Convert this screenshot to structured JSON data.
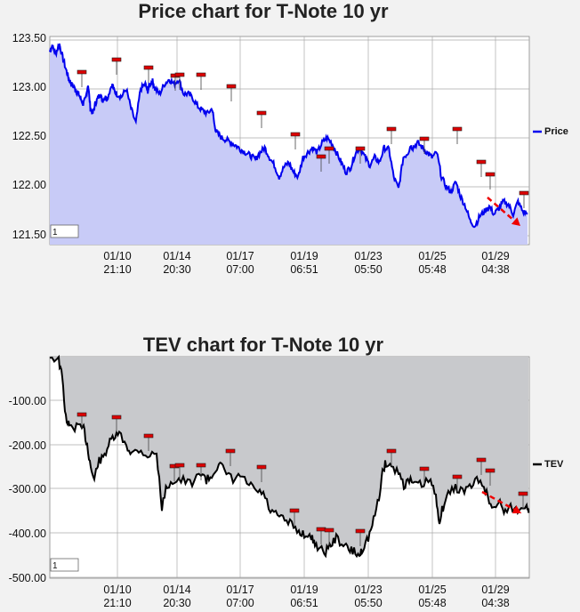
{
  "chart_data": [
    {
      "type": "line",
      "title": "Price chart for T-Note 10 yr",
      "legend": "Price",
      "legend_position": "right",
      "grid": true,
      "line_color": "#0000ee",
      "fill_color": "#c8cbf7",
      "marker_color": "#dd0000",
      "input_value": "1",
      "ylim": [
        121.4,
        123.6
      ],
      "yticks": [
        "123.50",
        "123.00",
        "122.50",
        "122.00",
        "121.50"
      ],
      "xticks": [
        {
          "date": "01/10",
          "time": "21:10"
        },
        {
          "date": "01/14",
          "time": "20:30"
        },
        {
          "date": "01/17",
          "time": "07:00"
        },
        {
          "date": "01/19",
          "time": "06:51"
        },
        {
          "date": "01/23",
          "time": "05:50"
        },
        {
          "date": "01/25",
          "time": "05:48"
        },
        {
          "date": "01/29",
          "time": "04:38"
        }
      ],
      "x": [
        0,
        0.005,
        0.012,
        0.02,
        0.028,
        0.035,
        0.04,
        0.045,
        0.05,
        0.055,
        0.06,
        0.065,
        0.07,
        0.075,
        0.08,
        0.085,
        0.09,
        0.095,
        0.1,
        0.105,
        0.11,
        0.115,
        0.12,
        0.13,
        0.135,
        0.14,
        0.15,
        0.16,
        0.17,
        0.18,
        0.19,
        0.2,
        0.205,
        0.21,
        0.215,
        0.22,
        0.23,
        0.24,
        0.25,
        0.26,
        0.27,
        0.28,
        0.29,
        0.3,
        0.31,
        0.32,
        0.33,
        0.34,
        0.345,
        0.35,
        0.36,
        0.37,
        0.38,
        0.39,
        0.4,
        0.41,
        0.42,
        0.43,
        0.44,
        0.45,
        0.46,
        0.47,
        0.48,
        0.49,
        0.5,
        0.51,
        0.52,
        0.53,
        0.54,
        0.55,
        0.56,
        0.57,
        0.58,
        0.59,
        0.6,
        0.61,
        0.62,
        0.63,
        0.64,
        0.65,
        0.66,
        0.67,
        0.68,
        0.69,
        0.7,
        0.71,
        0.72,
        0.73,
        0.74,
        0.75,
        0.755,
        0.76,
        0.77,
        0.78,
        0.79,
        0.8,
        0.81,
        0.82,
        0.83,
        0.84,
        0.85,
        0.86,
        0.87,
        0.88,
        0.89,
        0.9,
        0.91,
        0.92,
        0.93,
        0.94,
        0.95,
        0.96,
        0.97,
        0.98,
        0.99,
        1.0
      ],
      "y": [
        123.38,
        123.44,
        123.36,
        123.46,
        123.3,
        123.18,
        123.1,
        123.05,
        123.02,
        122.98,
        122.95,
        122.9,
        122.85,
        122.9,
        123.05,
        122.8,
        122.75,
        122.85,
        122.9,
        122.95,
        122.88,
        122.92,
        122.9,
        123.05,
        122.98,
        122.95,
        122.92,
        123.0,
        122.8,
        122.65,
        123.0,
        123.05,
        122.98,
        123.05,
        123.08,
        123.0,
        122.95,
        123.05,
        123.1,
        123.05,
        123.1,
        122.95,
        122.95,
        122.9,
        122.82,
        122.78,
        122.75,
        122.8,
        122.62,
        122.55,
        122.5,
        122.48,
        122.45,
        122.42,
        122.38,
        122.35,
        122.32,
        122.28,
        122.35,
        122.4,
        122.3,
        122.22,
        122.1,
        122.2,
        122.25,
        122.15,
        122.1,
        122.3,
        122.35,
        122.4,
        122.35,
        122.45,
        122.5,
        122.45,
        122.35,
        122.25,
        122.15,
        122.2,
        122.35,
        122.4,
        122.3,
        122.22,
        122.3,
        122.25,
        122.4,
        122.38,
        122.1,
        121.98,
        122.3,
        122.35,
        122.42,
        122.4,
        122.45,
        122.4,
        122.35,
        122.3,
        122.35,
        122.1,
        122.0,
        121.95,
        122.05,
        121.9,
        121.8,
        121.65,
        121.6,
        121.7,
        121.75,
        121.8,
        121.72,
        121.78,
        121.85,
        121.82,
        121.72,
        121.85,
        121.75,
        121.72
      ],
      "markers": [
        {
          "x": 0.12,
          "y": 123.15
        },
        {
          "x": 0.215,
          "y": 123.28
        },
        {
          "x": 0.3,
          "y": 123.2
        },
        {
          "x": 0.355,
          "y": 123.1
        },
        {
          "x": 0.39,
          "y": 123.12
        },
        {
          "x": 0.45,
          "y": 123.12
        },
        {
          "x": 0.53,
          "y": 122.98
        },
        {
          "x": 0.62,
          "y": 122.75
        },
        {
          "x": 0.72,
          "y": 122.52
        },
        {
          "x": 0.795,
          "y": 122.28
        },
        {
          "x": 0.825,
          "y": 122.38
        },
        {
          "x": 0.905,
          "y": 122.38
        },
        {
          "x": 0.96,
          "y": 122.6
        },
        {
          "x": 1.1,
          "y": 122.48
        },
        {
          "x": 1.25,
          "y": 122.58
        },
        {
          "x": 1.32,
          "y": 122.25
        },
        {
          "x": 1.35,
          "y": 122.1
        },
        {
          "x": 1.46,
          "y": 121.92
        }
      ],
      "trend": {
        "x0": 1.37,
        "y0": 121.8,
        "x1": 1.46,
        "y1": 121.55
      }
    },
    {
      "type": "line",
      "title": "TEV chart for T-Note 10 yr",
      "legend": "TEV",
      "legend_position": "right",
      "grid": true,
      "line_color": "#000000",
      "fill_color": "#c8c9cc",
      "marker_color": "#dd0000",
      "input_value": "1",
      "ylim": [
        -500,
        0
      ],
      "yticks": [
        "-100.00",
        "-200.00",
        "-300.00",
        "-400.00",
        "-500.00"
      ],
      "xticks": [
        {
          "date": "01/10",
          "time": "21:10"
        },
        {
          "date": "01/14",
          "time": "20:30"
        },
        {
          "date": "01/17",
          "time": "07:00"
        },
        {
          "date": "01/19",
          "time": "06:51"
        },
        {
          "date": "01/23",
          "time": "05:50"
        },
        {
          "date": "01/25",
          "time": "05:48"
        },
        {
          "date": "01/29",
          "time": "04:38"
        }
      ]
    }
  ]
}
